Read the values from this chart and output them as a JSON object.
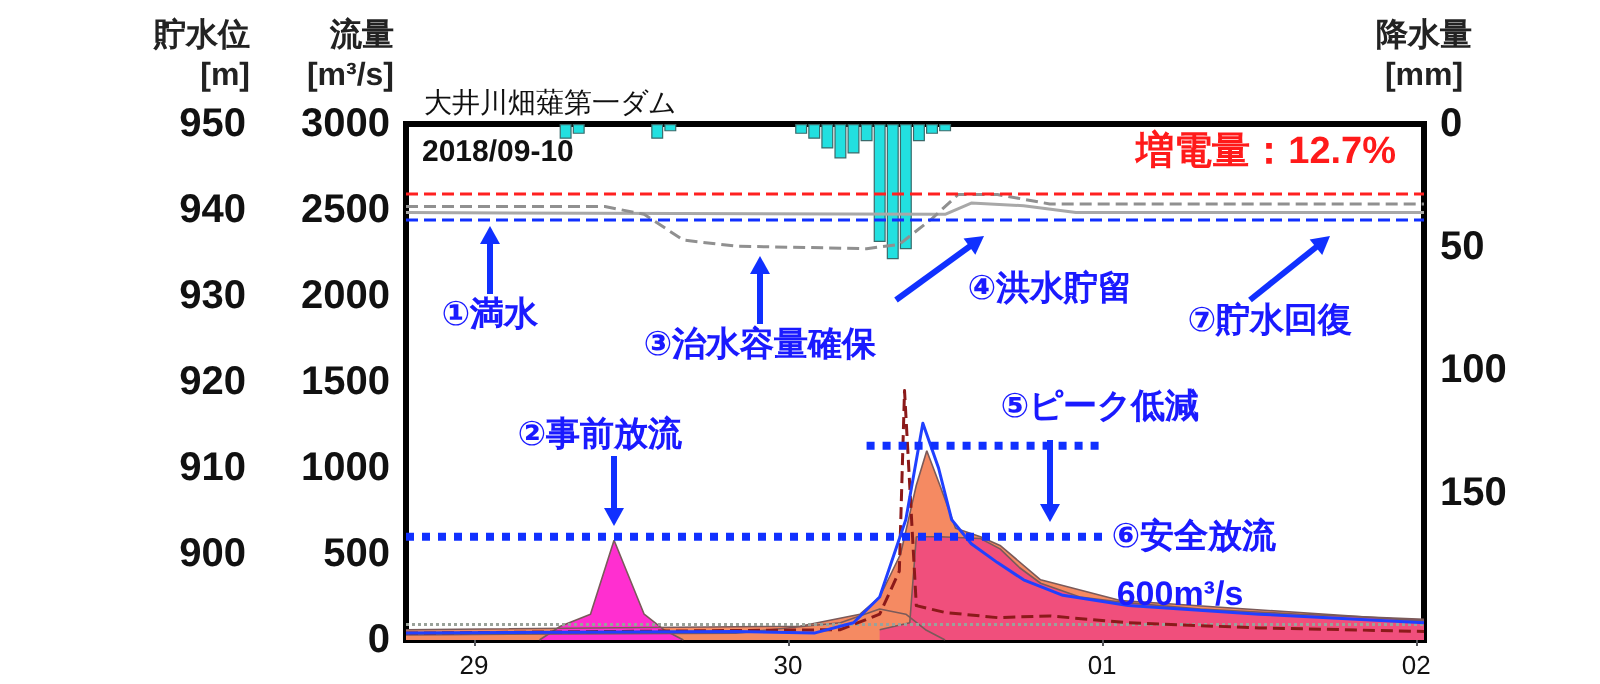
{
  "chart_data": {
    "type": "line",
    "title": "大井川畑薙第一ダム",
    "ylabel": "流量 [m³/s]",
    "y2label": "貯水位 [m]",
    "y3label": "降水量 [mm]",
    "xlim": [
      "2018-09-28T18:48",
      "2018-10-02T00:36"
    ],
    "xticks": [
      {
        "value": "2018-09-29T00:00",
        "label": "29"
      },
      {
        "value": "2018-09-30T00:00",
        "label": "30"
      },
      {
        "value": "2018-10-01T00:00",
        "label": "01"
      },
      {
        "value": "2018-10-02T00:00",
        "label": "02"
      }
    ],
    "ylim": [
      0,
      3000
    ],
    "yticks": [
      0,
      500,
      1000,
      1500,
      2000,
      2500,
      3000
    ],
    "y2lim": [
      890,
      950
    ],
    "y2ticks": [
      900,
      910,
      920,
      930,
      940,
      950
    ],
    "y3lim": [
      210,
      0
    ],
    "y3ticks": [
      0,
      50,
      100,
      150
    ],
    "grid": false,
    "marker": "none",
    "series": [
      {
        "type": "bar",
        "axis": "y3",
        "color": "#22e0e0",
        "x": [
          "2018-09-29T07:00",
          "2018-09-29T08:00",
          "2018-09-29T14:00",
          "2018-09-29T15:00",
          "2018-09-30T01:00",
          "2018-09-30T02:00",
          "2018-09-30T03:00",
          "2018-09-30T04:00",
          "2018-09-30T05:00",
          "2018-09-30T06:00",
          "2018-09-30T07:00",
          "2018-09-30T08:00",
          "2018-09-30T09:00",
          "2018-09-30T10:00",
          "2018-09-30T11:00",
          "2018-09-30T12:00"
        ],
        "values": [
          6,
          4,
          6,
          3,
          4,
          6,
          10,
          14,
          12,
          7,
          48,
          55,
          51,
          7,
          4,
          3
        ]
      },
      {
        "type": "area",
        "color": "#5fae98",
        "x": [
          "2018-09-28T18:48",
          "2018-09-29T20:00",
          "2018-09-30T04:00",
          "2018-09-30T07:00",
          "2018-09-30T09:00",
          "2018-09-30T10:30",
          "2018-09-30T12:00"
        ],
        "values": [
          30,
          40,
          100,
          180,
          150,
          60,
          0
        ]
      },
      {
        "type": "area",
        "color": "#f58a62",
        "x": [
          "2018-09-28T18:48",
          "2018-09-30T00:54",
          "2018-09-30T05:30",
          "2018-09-30T07:00",
          "2018-09-30T08:36",
          "2018-09-30T09:48",
          "2018-09-30T10:36",
          "2018-09-30T11:36",
          "2018-09-30T12:48",
          "2018-09-30T14:42",
          "2018-09-30T16:12",
          "2018-09-30T19:18",
          "2018-10-01T01:24",
          "2018-10-01T22:48",
          "2018-10-02T00:36"
        ],
        "values": [
          60,
          80,
          150,
          250,
          500,
          900,
          1100,
          900,
          650,
          600,
          550,
          350,
          230,
          120,
          110
        ]
      },
      {
        "type": "area",
        "color": "#f04f7c",
        "x": [
          "2018-09-30T07:00",
          "2018-09-30T09:18",
          "2018-09-30T09:48",
          "2018-09-30T11:36",
          "2018-09-30T14:42",
          "2018-09-30T16:12",
          "2018-09-30T17:42",
          "2018-09-30T19:18",
          "2018-09-30T22:18",
          "2018-10-01T01:24",
          "2018-10-01T07:30",
          "2018-10-01T15:06",
          "2018-10-02T00:36"
        ],
        "values": [
          60,
          100,
          600,
          600,
          590,
          530,
          420,
          330,
          250,
          220,
          180,
          150,
          120
        ]
      },
      {
        "type": "area",
        "color": "#ff2fd0",
        "x": [
          "2018-09-29T05:00",
          "2018-09-29T06:36",
          "2018-09-29T08:54",
          "2018-09-29T10:42",
          "2018-09-29T13:00",
          "2018-09-29T14:30",
          "2018-09-29T16:00"
        ],
        "values": [
          0,
          80,
          150,
          580,
          150,
          60,
          0
        ]
      },
      {
        "color": "#9aa29a",
        "line_style": "dotted",
        "x": [
          "2018-09-28T18:48",
          "2018-09-29T20:00",
          "2018-09-30T16:00",
          "2018-10-02T00:36"
        ],
        "values": [
          90,
          90,
          90,
          90
        ]
      },
      {
        "color": "#8b1a1a",
        "line_style": "dashed",
        "x": [
          "2018-09-28T18:48",
          "2018-09-30T04:00",
          "2018-09-30T07:00",
          "2018-09-30T08:30",
          "2018-09-30T08:54",
          "2018-09-30T09:48",
          "2018-09-30T12:00",
          "2018-09-30T16:00",
          "2018-09-30T20:00",
          "2018-10-01T02:00",
          "2018-10-01T12:00",
          "2018-10-02T00:36"
        ],
        "values": [
          40,
          60,
          150,
          400,
          1450,
          200,
          160,
          130,
          140,
          100,
          70,
          50
        ]
      },
      {
        "color": "#2040ff",
        "x": [
          "2018-09-28T18:48",
          "2018-09-29T20:00",
          "2018-09-30T02:00",
          "2018-09-30T05:00",
          "2018-09-30T07:00",
          "2018-09-30T09:00",
          "2018-09-30T10:18",
          "2018-09-30T11:30",
          "2018-09-30T12:30",
          "2018-09-30T14:00",
          "2018-09-30T16:00",
          "2018-09-30T18:00",
          "2018-09-30T21:00",
          "2018-10-01T02:00",
          "2018-10-01T12:00",
          "2018-10-02T00:36"
        ],
        "values": [
          40,
          50,
          40,
          100,
          250,
          700,
          1260,
          1000,
          700,
          560,
          450,
          350,
          260,
          200,
          150,
          100
        ]
      },
      {
        "color": "#1030ff",
        "line_style": "dotted",
        "x": [
          "2018-09-28T18:48",
          "2018-10-01T00:18"
        ],
        "values": [
          600,
          600
        ]
      },
      {
        "color": "#1030ff",
        "line_style": "dotted",
        "x": [
          "2018-09-30T06:00",
          "2018-10-01T00:18"
        ],
        "values": [
          1130,
          1130
        ]
      },
      {
        "axis": "y2",
        "color": "#a8a8a8",
        "x": [
          "2018-09-28T18:48",
          "2018-09-30T12:00",
          "2018-09-30T14:00",
          "2018-09-30T18:00",
          "2018-09-30T22:00",
          "2018-10-02T00:36"
        ],
        "values": [
          939.7,
          939.5,
          940.8,
          940.5,
          939.7,
          939.7
        ]
      },
      {
        "axis": "y2",
        "color": "#909090",
        "line_style": "dashed",
        "x": [
          "2018-09-28T18:48",
          "2018-09-29T10:00",
          "2018-09-29T13:00",
          "2018-09-29T16:00",
          "2018-09-29T20:00",
          "2018-09-30T06:00",
          "2018-09-30T08:30",
          "2018-09-30T11:00",
          "2018-09-30T13:00",
          "2018-09-30T16:00",
          "2018-09-30T20:00",
          "2018-10-02T00:36"
        ],
        "values": [
          940.4,
          940.4,
          939.5,
          936.5,
          935.8,
          935.5,
          936,
          939,
          941.8,
          941.8,
          940.7,
          940.7
        ]
      }
    ],
    "ref_lines": [
      {
        "axis": "y2",
        "value": 942,
        "color": "#ff2020",
        "line_style": "dashed"
      },
      {
        "axis": "y2",
        "value": 939,
        "color": "#1030ff",
        "line_style": "dashed"
      }
    ],
    "annotations": [
      "2018/09-10",
      "増電量：12.7%",
      "①満水",
      "③治水容量確保",
      "②事前放流",
      "④洪水貯留",
      "⑤ピーク低減",
      "⑥安全放流",
      "600m³/s",
      "⑦貯水回復"
    ]
  }
}
